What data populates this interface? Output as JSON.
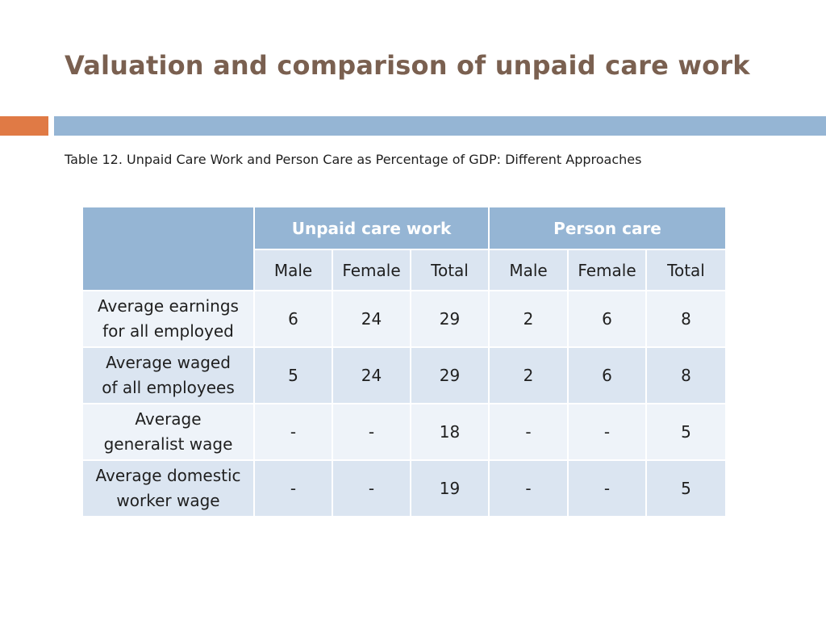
{
  "slide": {
    "title": "Valuation and comparison of unpaid care work",
    "caption": "Table 12. Unpaid Care Work and Person Care as Percentage of GDP: Different Approaches"
  },
  "colors": {
    "title": "#7a6050",
    "accent_orange": "#e07a45",
    "accent_blue": "#95b5d4",
    "row_light": "#eef3f9",
    "row_dark": "#dbe5f1"
  },
  "table": {
    "groups": [
      "Unpaid care work",
      "Person care"
    ],
    "subheaders": [
      "Male",
      "Female",
      "Total",
      "Male",
      "Female",
      "Total"
    ],
    "rows": [
      {
        "label_line1": "Average earnings",
        "label_line2": "for all employed",
        "values": [
          "6",
          "24",
          "29",
          "2",
          "6",
          "8"
        ]
      },
      {
        "label_line1": "Average waged",
        "label_line2": "of all employees",
        "values": [
          "5",
          "24",
          "29",
          "2",
          "6",
          "8"
        ]
      },
      {
        "label_line1": "Average",
        "label_line2": "generalist wage",
        "values": [
          "-",
          "-",
          "18",
          "-",
          "-",
          "5"
        ]
      },
      {
        "label_line1": "Average domestic",
        "label_line2": "worker wage",
        "values": [
          "-",
          "-",
          "19",
          "-",
          "-",
          "5"
        ]
      }
    ]
  }
}
